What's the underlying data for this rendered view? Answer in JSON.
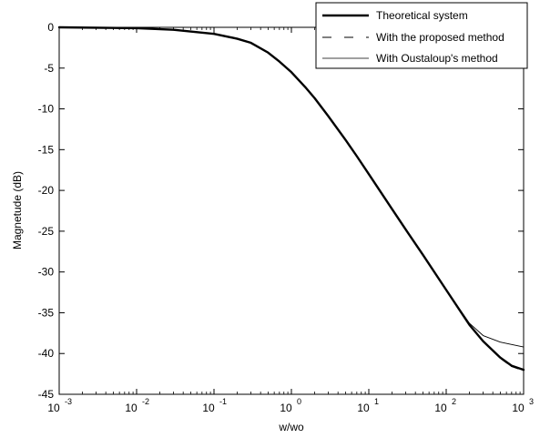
{
  "chart_data": {
    "type": "line",
    "title": "",
    "xlabel": "w/wo",
    "ylabel": "Magnetude (dB)",
    "xscale": "log",
    "xlim": [
      0.001,
      1000
    ],
    "ylim": [
      -45,
      0
    ],
    "x_ticks": [
      {
        "value": 0.001,
        "base": "10",
        "exp": "-3"
      },
      {
        "value": 0.01,
        "base": "10",
        "exp": "-2"
      },
      {
        "value": 0.1,
        "base": "10",
        "exp": "-1"
      },
      {
        "value": 1,
        "base": "10",
        "exp": "0"
      },
      {
        "value": 10,
        "base": "10",
        "exp": "1"
      },
      {
        "value": 100,
        "base": "10",
        "exp": "2"
      },
      {
        "value": 1000,
        "base": "10",
        "exp": "3"
      }
    ],
    "y_ticks": [
      0,
      -5,
      -10,
      -15,
      -20,
      -25,
      -30,
      -35,
      -40,
      -45
    ],
    "grid": false,
    "legend_position": "top-right",
    "series": [
      {
        "name": "Theoretical system",
        "style": "solid-thick",
        "x": [
          0.001,
          0.01,
          0.03,
          0.1,
          0.2,
          0.3,
          0.5,
          0.7,
          1,
          1.5,
          2,
          3,
          5,
          7,
          10,
          20,
          30,
          50,
          100,
          200,
          300,
          500,
          700,
          1000
        ],
        "y": [
          0,
          -0.1,
          -0.3,
          -0.8,
          -1.4,
          -1.9,
          -3.1,
          -4.2,
          -5.5,
          -7.3,
          -8.7,
          -10.9,
          -13.8,
          -15.8,
          -18.0,
          -22.3,
          -24.8,
          -27.9,
          -32.2,
          -36.5,
          -38.5,
          -40.5,
          -41.5,
          -42.0
        ]
      },
      {
        "name": "With the proposed method",
        "style": "dashed",
        "x": [
          0.001,
          0.01,
          0.03,
          0.1,
          0.2,
          0.3,
          0.5,
          0.7,
          1,
          1.5,
          2,
          3,
          5,
          7,
          10,
          20,
          30,
          50,
          100,
          200,
          300,
          500,
          700,
          1000
        ],
        "y": [
          0,
          -0.1,
          -0.3,
          -0.8,
          -1.4,
          -1.9,
          -3.1,
          -4.2,
          -5.5,
          -7.3,
          -8.7,
          -10.9,
          -13.8,
          -15.8,
          -18.0,
          -22.3,
          -24.8,
          -27.9,
          -32.2,
          -36.5,
          -38.5,
          -40.6,
          -41.6,
          -42.1
        ]
      },
      {
        "name": "With Oustaloup's method",
        "style": "solid-thin",
        "x": [
          0.001,
          0.01,
          0.03,
          0.1,
          0.2,
          0.3,
          0.5,
          0.7,
          1,
          1.5,
          2,
          3,
          5,
          7,
          10,
          20,
          30,
          50,
          100,
          200,
          300,
          500,
          700,
          1000
        ],
        "y": [
          0,
          -0.1,
          -0.3,
          -0.8,
          -1.4,
          -1.9,
          -3.1,
          -4.2,
          -5.5,
          -7.3,
          -8.7,
          -10.9,
          -13.8,
          -15.8,
          -18.0,
          -22.3,
          -24.8,
          -27.9,
          -32.2,
          -36.3,
          -37.8,
          -38.6,
          -38.9,
          -39.2
        ]
      }
    ]
  }
}
